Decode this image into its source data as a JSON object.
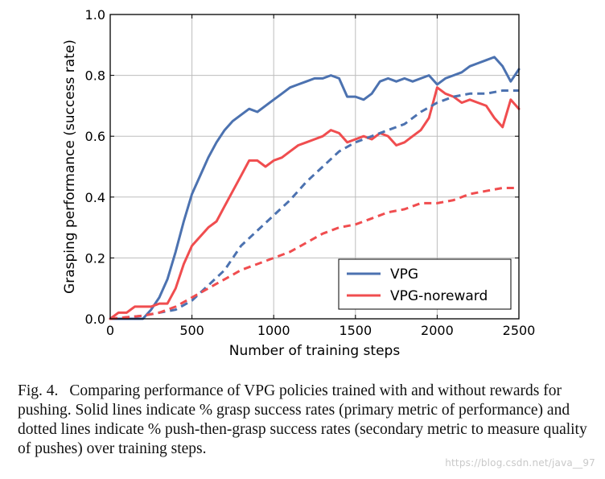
{
  "chart_data": {
    "type": "line",
    "xlabel": "Number of training steps",
    "ylabel": "Grasping performance (success rate)",
    "xlim": [
      0,
      2500
    ],
    "ylim": [
      0.0,
      1.0
    ],
    "xticks": [
      "0",
      "500",
      "1000",
      "1500",
      "2000",
      "2500"
    ],
    "yticks": [
      "0.0",
      "0.2",
      "0.4",
      "0.6",
      "0.8",
      "1.0"
    ],
    "grid": true,
    "legend_position": "lower-right",
    "series": [
      {
        "name": "VPG",
        "metric": "grasp success",
        "style": "solid",
        "color": "#4c72b0",
        "x": [
          0,
          100,
          200,
          250,
          300,
          350,
          400,
          450,
          500,
          550,
          600,
          650,
          700,
          750,
          800,
          850,
          900,
          950,
          1000,
          1050,
          1100,
          1150,
          1200,
          1250,
          1300,
          1350,
          1400,
          1450,
          1500,
          1550,
          1600,
          1650,
          1700,
          1750,
          1800,
          1850,
          1900,
          1950,
          2000,
          2050,
          2100,
          2150,
          2200,
          2250,
          2300,
          2350,
          2400,
          2450,
          2500
        ],
        "y": [
          0.0,
          0.0,
          0.0,
          0.03,
          0.07,
          0.13,
          0.22,
          0.32,
          0.41,
          0.47,
          0.53,
          0.58,
          0.62,
          0.65,
          0.67,
          0.69,
          0.68,
          0.7,
          0.72,
          0.74,
          0.76,
          0.77,
          0.78,
          0.79,
          0.79,
          0.8,
          0.79,
          0.73,
          0.73,
          0.72,
          0.74,
          0.78,
          0.79,
          0.78,
          0.79,
          0.78,
          0.79,
          0.8,
          0.77,
          0.79,
          0.8,
          0.81,
          0.83,
          0.84,
          0.85,
          0.86,
          0.83,
          0.78,
          0.82
        ]
      },
      {
        "name": "VPG-noreward",
        "metric": "grasp success",
        "style": "solid",
        "color": "#f04d4f",
        "x": [
          0,
          50,
          100,
          150,
          200,
          250,
          300,
          350,
          400,
          450,
          500,
          550,
          600,
          650,
          700,
          750,
          800,
          850,
          900,
          950,
          1000,
          1050,
          1100,
          1150,
          1200,
          1250,
          1300,
          1350,
          1400,
          1450,
          1500,
          1550,
          1600,
          1650,
          1700,
          1750,
          1800,
          1850,
          1900,
          1950,
          2000,
          2050,
          2100,
          2150,
          2200,
          2250,
          2300,
          2350,
          2400,
          2450,
          2500
        ],
        "y": [
          0.0,
          0.02,
          0.02,
          0.04,
          0.04,
          0.04,
          0.05,
          0.05,
          0.1,
          0.18,
          0.24,
          0.27,
          0.3,
          0.32,
          0.37,
          0.42,
          0.47,
          0.52,
          0.52,
          0.5,
          0.52,
          0.53,
          0.55,
          0.57,
          0.58,
          0.59,
          0.6,
          0.62,
          0.61,
          0.58,
          0.59,
          0.6,
          0.59,
          0.61,
          0.6,
          0.57,
          0.58,
          0.6,
          0.62,
          0.66,
          0.76,
          0.74,
          0.73,
          0.71,
          0.72,
          0.71,
          0.7,
          0.66,
          0.63,
          0.72,
          0.69
        ]
      },
      {
        "name": "VPG (push-then-grasp)",
        "metric": "push-then-grasp success",
        "style": "dashed",
        "color": "#4c72b0",
        "x": [
          0,
          200,
          300,
          400,
          500,
          600,
          700,
          800,
          900,
          1000,
          1100,
          1200,
          1300,
          1400,
          1500,
          1600,
          1700,
          1800,
          1900,
          2000,
          2100,
          2200,
          2300,
          2400,
          2500
        ],
        "y": [
          0.0,
          0.01,
          0.02,
          0.03,
          0.06,
          0.11,
          0.16,
          0.24,
          0.29,
          0.34,
          0.39,
          0.45,
          0.5,
          0.55,
          0.58,
          0.6,
          0.62,
          0.64,
          0.68,
          0.71,
          0.73,
          0.74,
          0.74,
          0.75,
          0.75
        ]
      },
      {
        "name": "VPG-noreward (push-then-grasp)",
        "metric": "push-then-grasp success",
        "style": "dashed",
        "color": "#f04d4f",
        "x": [
          0,
          200,
          300,
          400,
          500,
          600,
          700,
          800,
          900,
          1000,
          1100,
          1200,
          1300,
          1400,
          1500,
          1600,
          1700,
          1800,
          1900,
          2000,
          2100,
          2200,
          2300,
          2400,
          2500
        ],
        "y": [
          0.0,
          0.01,
          0.02,
          0.04,
          0.07,
          0.1,
          0.13,
          0.16,
          0.18,
          0.2,
          0.22,
          0.25,
          0.28,
          0.3,
          0.31,
          0.33,
          0.35,
          0.36,
          0.38,
          0.38,
          0.39,
          0.41,
          0.42,
          0.43,
          0.43
        ]
      }
    ],
    "legend": [
      {
        "label": "VPG",
        "color": "#4c72b0"
      },
      {
        "label": "VPG-noreward",
        "color": "#f04d4f"
      }
    ]
  },
  "caption": {
    "lead": "Fig. 4.",
    "text": "Comparing performance of VPG policies trained with and without rewards for pushing. Solid lines indicate % grasp success rates (primary metric of performance) and dotted lines indicate % push-then-grasp success rates (secondary metric to measure quality of pushes) over training steps."
  },
  "watermark": "https://blog.csdn.net/java__97"
}
